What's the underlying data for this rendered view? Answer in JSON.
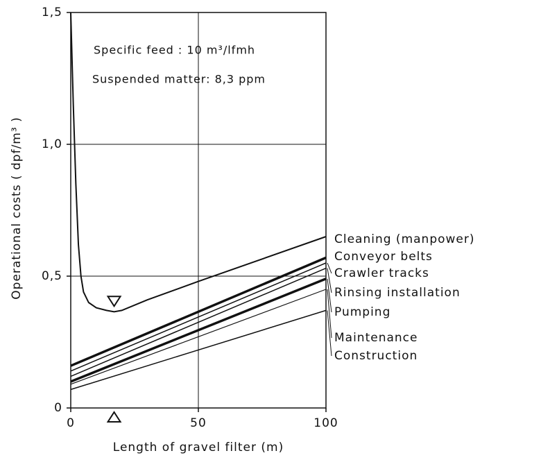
{
  "chart_data": {
    "type": "line",
    "annotations": [
      "Specific feed : 10 m³/lfmh",
      "Suspended matter: 8,3 ppm"
    ],
    "xlabel": "Length of gravel filter (m)",
    "ylabel": "Operational costs ( dpf/m³ )",
    "xlim": [
      0,
      100
    ],
    "xticks": [
      0,
      50,
      100
    ],
    "ylim": [
      0,
      1.5
    ],
    "yticks": [
      0,
      {
        "value": 0.5,
        "label": "0,5"
      },
      {
        "value": 1.0,
        "label": "1,0"
      },
      {
        "value": 1.5,
        "label": "1,5"
      }
    ],
    "grid": true,
    "color": "#111",
    "series": [
      {
        "name": "Cleaning (manpower)",
        "line_width": 2,
        "x": [
          0,
          1,
          2,
          3,
          4,
          5,
          7,
          10,
          14,
          17,
          20,
          30,
          50,
          75,
          100
        ],
        "values": [
          1.5,
          1.15,
          0.85,
          0.62,
          0.5,
          0.44,
          0.4,
          0.38,
          0.37,
          0.365,
          0.37,
          0.41,
          0.48,
          0.565,
          0.65
        ]
      },
      {
        "name": "Conveyor belts",
        "line_width": 3.5,
        "x": [
          0,
          100
        ],
        "values": [
          0.16,
          0.57
        ]
      },
      {
        "name": "Crawler tracks",
        "line_width": 1.5,
        "x": [
          0,
          100
        ],
        "values": [
          0.14,
          0.55
        ]
      },
      {
        "name": "Rinsing installation",
        "line_width": 1.5,
        "x": [
          0,
          100
        ],
        "values": [
          0.12,
          0.53
        ]
      },
      {
        "name": "Pumping",
        "line_width": 3.5,
        "x": [
          0,
          100
        ],
        "values": [
          0.1,
          0.49
        ]
      },
      {
        "name": "Maintenance",
        "line_width": 1.2,
        "x": [
          0,
          100
        ],
        "values": [
          0.09,
          0.45
        ]
      },
      {
        "name": "Construction",
        "line_width": 1.5,
        "x": [
          0,
          100
        ],
        "values": [
          0.07,
          0.37
        ]
      }
    ]
  }
}
